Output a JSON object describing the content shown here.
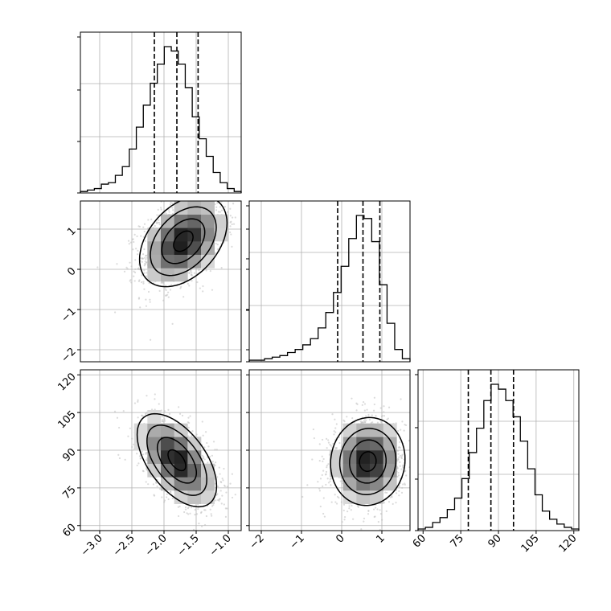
{
  "chart_data": {
    "type": "corner",
    "title": "",
    "colors": {
      "hist": "#000000",
      "grid": "#b0b0b0",
      "scatter": "#bdbdbd",
      "density": "#000000"
    },
    "grid": true,
    "parameters": [
      {
        "label": "",
        "range": [
          -3.3,
          -0.8
        ],
        "ticks": [
          -3.0,
          -2.5,
          -2.0,
          -1.5,
          -1.0
        ],
        "tick_labels": [
          "−3.0",
          "−2.5",
          "−2.0",
          "−1.5",
          "−1.0"
        ],
        "quantiles": [
          -2.15,
          -1.8,
          -1.47
        ]
      },
      {
        "label": "",
        "range": [
          -2.3,
          1.7
        ],
        "ticks": [
          -2,
          -1,
          0,
          1
        ],
        "tick_labels": [
          "−2",
          "−1",
          "0",
          "1"
        ],
        "quantiles": [
          -0.1,
          0.53,
          0.95
        ]
      },
      {
        "label": "",
        "range": [
          58,
          122
        ],
        "ticks": [
          60,
          75,
          90,
          105,
          120
        ],
        "tick_labels": [
          "60",
          "75",
          "90",
          "105",
          "120"
        ],
        "quantiles": [
          78,
          87,
          96
        ]
      }
    ],
    "histograms": [
      {
        "param": 0,
        "counts": [
          1,
          2,
          3,
          6,
          7,
          12,
          18,
          30,
          45,
          60,
          75,
          88,
          100,
          97,
          88,
          72,
          52,
          37,
          25,
          14,
          7,
          3,
          1
        ]
      },
      {
        "param": 1,
        "counts": [
          1,
          1,
          2,
          3,
          4,
          6,
          8,
          11,
          15,
          22,
          32,
          45,
          62,
          80,
          95,
          93,
          78,
          50,
          25,
          8,
          2
        ]
      },
      {
        "param": 2,
        "counts": [
          1,
          2,
          5,
          8,
          13,
          20,
          32,
          48,
          63,
          80,
          90,
          87,
          80,
          70,
          55,
          38,
          22,
          12,
          7,
          4,
          2,
          1
        ]
      }
    ],
    "panels_2d": [
      {
        "x_param": 0,
        "y_param": 1,
        "center": [
          -1.7,
          0.7
        ],
        "std": [
          0.33,
          0.55
        ],
        "correlation": 0.4,
        "contours": [
          0.12,
          0.3,
          0.6,
          0.9
        ]
      },
      {
        "x_param": 0,
        "y_param": 2,
        "center": [
          -1.8,
          86
        ],
        "std": [
          0.3,
          9
        ],
        "correlation": -0.55,
        "contours": [
          0.12,
          0.3,
          0.6,
          0.9
        ]
      },
      {
        "x_param": 1,
        "y_param": 2,
        "center": [
          0.65,
          85.5
        ],
        "std": [
          0.45,
          8.5
        ],
        "correlation": 0.05,
        "contours": [
          0.12,
          0.3,
          0.6,
          0.9
        ]
      }
    ]
  }
}
